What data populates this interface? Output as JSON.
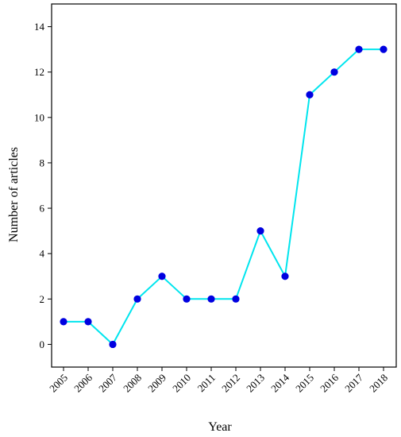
{
  "chart_data": {
    "type": "line",
    "title": "",
    "xlabel": "Year",
    "ylabel": "Number of articles",
    "x": [
      "2005",
      "2006",
      "2007",
      "2008",
      "2009",
      "2010",
      "2011",
      "2012",
      "2013",
      "2014",
      "2015",
      "2016",
      "2017",
      "2018"
    ],
    "series": [
      {
        "values": [
          1,
          1,
          0,
          2,
          3,
          2,
          2,
          2,
          5,
          3,
          11,
          12,
          13,
          13
        ]
      }
    ],
    "ylim": [
      -1,
      15
    ],
    "yticks": [
      0,
      2,
      4,
      6,
      8,
      10,
      12,
      14
    ],
    "grid": false,
    "legend": "none",
    "line_color": "#00e5ee",
    "marker_color": "#0000e0"
  }
}
